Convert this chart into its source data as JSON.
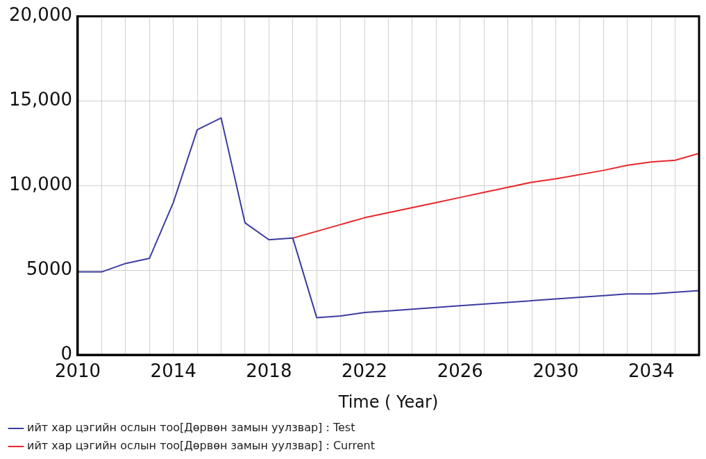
{
  "chart_data": {
    "type": "line",
    "xlabel": "Time ( Year)",
    "xlim": [
      2010,
      2036
    ],
    "xticks": [
      2010,
      {
        "value": 2011,
        "label": null
      },
      {
        "value": 2012,
        "label": null
      },
      {
        "value": 2013,
        "label": null
      },
      2014,
      {
        "value": 2015,
        "label": null
      },
      {
        "value": 2016,
        "label": null
      },
      {
        "value": 2017,
        "label": null
      },
      2018,
      {
        "value": 2019,
        "label": null
      },
      {
        "value": 2020,
        "label": null
      },
      {
        "value": 2021,
        "label": null
      },
      2022,
      {
        "value": 2023,
        "label": null
      },
      {
        "value": 2024,
        "label": null
      },
      {
        "value": 2025,
        "label": null
      },
      2026,
      {
        "value": 2027,
        "label": null
      },
      {
        "value": 2028,
        "label": null
      },
      {
        "value": 2029,
        "label": null
      },
      2030,
      {
        "value": 2031,
        "label": null
      },
      {
        "value": 2032,
        "label": null
      },
      {
        "value": 2033,
        "label": null
      },
      2034,
      {
        "value": 2035,
        "label": null
      },
      {
        "value": 2036,
        "label": null
      }
    ],
    "ylim": [
      0,
      20000
    ],
    "yticks": [
      0,
      5000,
      {
        "value": 10000,
        "label": "10,000"
      },
      {
        "value": 15000,
        "label": "15,000"
      },
      {
        "value": 20000,
        "label": "20,000"
      }
    ],
    "grid": true,
    "legend": "bottom",
    "marker": "none",
    "line_style": "solid",
    "series": [
      {
        "name": "ийт хар цэгийн ослын тоо[Дөрвөн замын уулзвар] : Test",
        "color": "#3c3ca0",
        "x": [
          2010,
          2011,
          2012,
          2013,
          2014,
          2015,
          2016,
          2017,
          2018,
          2019,
          2020,
          2021,
          2022,
          2023,
          2024,
          2026,
          2028,
          2030,
          2032,
          2033,
          2034,
          2036
        ],
        "values": [
          4900,
          4900,
          5400,
          5700,
          9000,
          13300,
          14000,
          7800,
          6800,
          6900,
          2200,
          2300,
          2500,
          2600,
          2700,
          2900,
          3100,
          3300,
          3500,
          3600,
          3600,
          3800
        ]
      },
      {
        "name": "ийт хар цэгийн ослын тоо[Дөрвөн замын уулзвар] : Current",
        "color": "#e8262a",
        "x": [
          2019,
          2020,
          2021,
          2022,
          2024,
          2025,
          2026,
          2027,
          2028,
          2029,
          2030,
          2032,
          2033,
          2034,
          2035,
          2036
        ],
        "values": [
          6900,
          7300,
          7700,
          8100,
          8700,
          9000,
          9300,
          9600,
          9900,
          10200,
          10400,
          10900,
          11200,
          11400,
          11500,
          11900
        ]
      }
    ]
  }
}
